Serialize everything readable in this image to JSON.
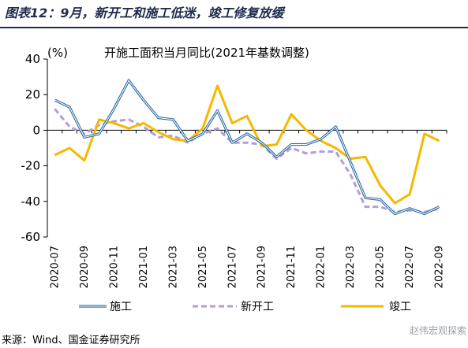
{
  "figure_title": "图表12：9月，新开工和施工低迷，竣工修复放缓",
  "source_note": "来源：Wind、国金证券研究所",
  "watermark": "赵伟宏观探索",
  "colors": {
    "construction": "#2e6ea6",
    "new_starts": "#b39ddb",
    "completions": "#f5b800",
    "title": "#1f2d4d"
  },
  "chart_data": {
    "type": "line",
    "title": "开施工面积当月同比(2021年基数调整)",
    "unit_label": "(%)",
    "ylim": [
      -60,
      40
    ],
    "yticks": [
      40,
      20,
      0,
      -20,
      -40,
      -60
    ],
    "grid": false,
    "legend_position": "bottom",
    "x": [
      "2020-07",
      "2020-08",
      "2020-09",
      "2020-10",
      "2020-11",
      "2020-12",
      "2021-01",
      "2021-02",
      "2021-03",
      "2021-04",
      "2021-05",
      "2021-06",
      "2021-07",
      "2021-08",
      "2021-09",
      "2021-10",
      "2021-11",
      "2021-12",
      "2022-01",
      "2022-02",
      "2022-03",
      "2022-04",
      "2022-05",
      "2022-06",
      "2022-07",
      "2022-08",
      "2022-09"
    ],
    "xtick_labels": [
      "2020-07",
      "2020-09",
      "2020-11",
      "2021-01",
      "2021-03",
      "2021-05",
      "2021-07",
      "2021-09",
      "2021-11",
      "2022-01",
      "2022-03",
      "2022-05",
      "2022-07",
      "2022-09"
    ],
    "series": [
      {
        "name": "施工",
        "style": "solid",
        "values": [
          17,
          13,
          -4,
          -2,
          12,
          28,
          17,
          7,
          6,
          -6,
          -2,
          11,
          -7,
          -2,
          -7,
          -15,
          -8,
          -8,
          -5,
          2,
          -18,
          -38,
          -39,
          -47,
          -44,
          -47,
          -43
        ]
      },
      {
        "name": "新开工",
        "style": "dashed",
        "values": [
          12,
          2,
          -2,
          3,
          5,
          6,
          2,
          -4,
          -3,
          -7,
          -2,
          1,
          -7,
          -7,
          -8,
          -16,
          -10,
          -13,
          -12,
          -12,
          -25,
          -43,
          -43,
          -46,
          -45,
          -46,
          -44
        ]
      },
      {
        "name": "竣工",
        "style": "solid",
        "values": [
          -14,
          -10,
          -17,
          6,
          4,
          1,
          4,
          -1,
          -5,
          -6,
          1,
          25,
          4,
          8,
          -9,
          -8,
          9,
          0,
          -6,
          -10,
          -16,
          -15,
          -31,
          -41,
          -36,
          -2,
          -6
        ]
      }
    ]
  }
}
